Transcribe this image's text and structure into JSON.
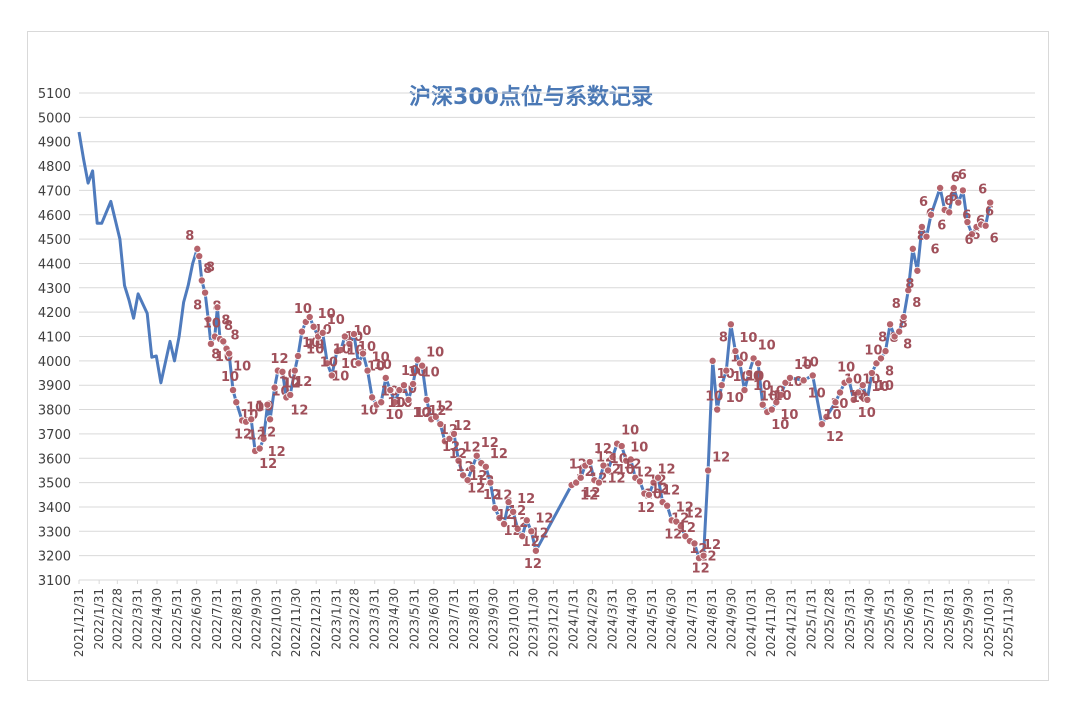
{
  "colors": {
    "line": "#4f7bbd",
    "marker": "#b5636b",
    "label": "#a0505a",
    "grid": "#d9d9d9",
    "title": "#4a78b5",
    "axis_text": "#404040"
  },
  "chart_data": {
    "type": "line",
    "title": "沪深300点位与系数记录",
    "xlabel": "",
    "ylabel": "",
    "ylim": [
      3100,
      5100
    ],
    "yticks": [
      3100,
      3200,
      3300,
      3400,
      3500,
      3600,
      3700,
      3800,
      3900,
      4000,
      4100,
      4200,
      4300,
      4400,
      4500,
      4600,
      4700,
      4800,
      4900,
      5000,
      5100
    ],
    "xlim": [
      "2021/12/31",
      "2026/1/10"
    ],
    "xticks": [
      "2021/12/31",
      "2022/1/31",
      "2022/2/28",
      "2022/3/31",
      "2022/4/30",
      "2022/5/31",
      "2022/6/30",
      "2022/7/31",
      "2022/8/31",
      "2022/9/30",
      "2022/10/31",
      "2022/11/30",
      "2022/12/31",
      "2023/1/31",
      "2023/2/28",
      "2023/3/31",
      "2023/4/30",
      "2023/5/31",
      "2023/6/30",
      "2023/7/31",
      "2023/8/31",
      "2023/9/30",
      "2023/10/31",
      "2023/11/30",
      "2023/12/31",
      "2024/1/31",
      "2024/2/29",
      "2024/3/31",
      "2024/4/30",
      "2024/5/31",
      "2024/6/30",
      "2024/7/31",
      "2024/8/31",
      "2024/9/30",
      "2024/10/31",
      "2024/11/30",
      "2024/12/31",
      "2025/1/31",
      "2025/2/28",
      "2025/3/31",
      "2025/4/30",
      "2025/5/31",
      "2025/6/30",
      "2025/7/31",
      "2025/8/31",
      "2025/9/30",
      "2025/10/31",
      "2025/11/30"
    ],
    "grid": true,
    "legend": "none",
    "series": [
      {
        "values": [
          [
            "2021/12/31",
            4940
          ],
          [
            "2022/1/7",
            4830
          ],
          [
            "2022/1/14",
            4730
          ],
          [
            "2022/1/21",
            4780
          ],
          [
            "2022/1/28",
            4565
          ],
          [
            "2022/2/4",
            4565
          ],
          [
            "2022/2/18",
            4655
          ],
          [
            "2022/3/4",
            4500
          ],
          [
            "2022/3/11",
            4310
          ],
          [
            "2022/3/18",
            4250
          ],
          [
            "2022/3/25",
            4175
          ],
          [
            "2022/4/1",
            4275
          ],
          [
            "2022/4/15",
            4195
          ],
          [
            "2022/4/22",
            4015
          ],
          [
            "2022/4/29",
            4020
          ],
          [
            "2022/5/6",
            3910
          ],
          [
            "2022/5/20",
            4080
          ],
          [
            "2022/5/27",
            4000
          ],
          [
            "2022/6/3",
            4100
          ],
          [
            "2022/6/10",
            4240
          ],
          [
            "2022/6/17",
            4310
          ],
          [
            "2022/6/24",
            4400
          ]
        ],
        "coef_points": [
          [
            "2022/7/1",
            4460,
            "8"
          ],
          [
            "2022/7/4",
            4430,
            "8"
          ],
          [
            "2022/7/8",
            4330,
            "8"
          ],
          [
            "2022/7/13",
            4280,
            "8"
          ],
          [
            "2022/7/18",
            4170,
            "8"
          ],
          [
            "2022/7/22",
            4070,
            "10"
          ],
          [
            "2022/7/28",
            4100,
            "10"
          ],
          [
            "2022/8/1",
            4220,
            "8"
          ],
          [
            "2022/8/5",
            4090,
            "8"
          ],
          [
            "2022/8/10",
            4080,
            "8"
          ],
          [
            "2022/8/15",
            4050,
            "8"
          ],
          [
            "2022/8/19",
            4030,
            "10"
          ],
          [
            "2022/8/25",
            3880,
            "10"
          ],
          [
            "2022/8/30",
            3830,
            "10"
          ],
          [
            "2022/9/8",
            3755,
            "10"
          ],
          [
            "2022/9/14",
            3750,
            "12"
          ],
          [
            "2022/9/22",
            3760,
            "10"
          ],
          [
            "2022/9/28",
            3630,
            "12"
          ],
          [
            "2022/10/5",
            3640,
            "12"
          ],
          [
            "2022/10/11",
            3680,
            "12"
          ],
          [
            "2022/10/17",
            3820,
            "10"
          ],
          [
            "2022/10/21",
            3760,
            "12"
          ],
          [
            "2022/10/28",
            3890,
            "10"
          ],
          [
            "2022/11/2",
            3960,
            "10"
          ],
          [
            "2022/11/9",
            3955,
            "12"
          ],
          [
            "2022/11/15",
            3850,
            "12"
          ],
          [
            "2022/11/21",
            3860,
            "12"
          ],
          [
            "2022/11/28",
            3960,
            "12"
          ],
          [
            "2022/12/3",
            4020,
            "10"
          ],
          [
            "2022/12/9",
            4120,
            "10"
          ],
          [
            "2022/12/15",
            4160,
            "10"
          ],
          [
            "2022/12/21",
            4180,
            "10"
          ],
          [
            "2022/12/27",
            4140,
            "10"
          ],
          [
            "2023/1/3",
            4100,
            "10"
          ],
          [
            "2023/1/10",
            4115,
            "10"
          ],
          [
            "2023/1/17",
            3990,
            "10"
          ],
          [
            "2023/1/24",
            3940,
            "10"
          ],
          [
            "2023/2/1",
            4040,
            "10"
          ],
          [
            "2023/2/7",
            4045,
            "10"
          ],
          [
            "2023/2/13",
            4100,
            "10"
          ],
          [
            "2023/2/20",
            4070,
            "10"
          ],
          [
            "2023/2/27",
            4110,
            "10"
          ],
          [
            "2023/3/6",
            3990,
            "10"
          ],
          [
            "2023/3/13",
            4030,
            "10"
          ],
          [
            "2023/3/20",
            3960,
            "10"
          ],
          [
            "2023/3/27",
            3850,
            "10"
          ],
          [
            "2023/4/3",
            3820,
            "10"
          ],
          [
            "2023/4/10",
            3830,
            "10"
          ],
          [
            "2023/4/17",
            3930,
            "10"
          ],
          [
            "2023/4/24",
            3880,
            "10"
          ],
          [
            "2023/5/1",
            3830,
            "10"
          ],
          [
            "2023/5/8",
            3880,
            "10"
          ],
          [
            "2023/5/15",
            3900,
            "10"
          ],
          [
            "2023/5/22",
            3840,
            "10"
          ],
          [
            "2023/5/29",
            3905,
            "10"
          ],
          [
            "2023/6/5",
            4005,
            "10"
          ],
          [
            "2023/6/12",
            3980,
            "10"
          ],
          [
            "2023/6/19",
            3840,
            "12"
          ],
          [
            "2023/6/26",
            3760,
            "12"
          ],
          [
            "2023/7/3",
            3770,
            "12"
          ],
          [
            "2023/7/10",
            3740,
            "12"
          ],
          [
            "2023/7/17",
            3670,
            "12"
          ],
          [
            "2023/7/24",
            3680,
            "12"
          ],
          [
            "2023/7/31",
            3700,
            "12"
          ],
          [
            "2023/8/7",
            3590,
            "12"
          ],
          [
            "2023/8/14",
            3530,
            "12"
          ],
          [
            "2023/8/21",
            3510,
            "12"
          ],
          [
            "2023/8/28",
            3560,
            "12"
          ],
          [
            "2023/9/4",
            3610,
            "12"
          ],
          [
            "2023/9/11",
            3580,
            "12"
          ],
          [
            "2023/9/18",
            3565,
            "12"
          ],
          [
            "2023/9/25",
            3500,
            "12"
          ],
          [
            "2023/10/2",
            3395,
            "12"
          ],
          [
            "2023/10/9",
            3355,
            "12"
          ],
          [
            "2023/10/16",
            3330,
            "12"
          ],
          [
            "2023/10/23",
            3420,
            "12"
          ],
          [
            "2023/10/30",
            3380,
            "12"
          ],
          [
            "2023/11/6",
            3310,
            "12"
          ],
          [
            "2023/11/13",
            3280,
            "12"
          ],
          [
            "2023/11/20",
            3345,
            "12"
          ],
          [
            "2023/11/27",
            3300,
            "12"
          ],
          [
            "2023/12/4",
            3220,
            "12"
          ],
          [
            "2024/1/28",
            3490,
            "12"
          ],
          [
            "2024/2/4",
            3500,
            "12"
          ],
          [
            "2024/2/11",
            3520,
            "12"
          ],
          [
            "2024/2/18",
            3570,
            "12"
          ],
          [
            "2024/2/25",
            3585,
            "12"
          ],
          [
            "2024/3/3",
            3510,
            "12"
          ],
          [
            "2024/3/10",
            3500,
            "12"
          ],
          [
            "2024/3/17",
            3570,
            "12"
          ],
          [
            "2024/3/24",
            3550,
            "12"
          ],
          [
            "2024/3/31",
            3605,
            "10"
          ],
          [
            "2024/4/7",
            3660,
            "10"
          ],
          [
            "2024/4/14",
            3650,
            "10"
          ],
          [
            "2024/4/21",
            3590,
            "10"
          ],
          [
            "2024/4/28",
            3595,
            "12"
          ],
          [
            "2024/5/5",
            3520,
            "12"
          ],
          [
            "2024/5/12",
            3505,
            "10"
          ],
          [
            "2024/5/19",
            3455,
            "12"
          ],
          [
            "2024/5/26",
            3450,
            "12"
          ],
          [
            "2024/6/2",
            3500,
            "12"
          ],
          [
            "2024/6/9",
            3520,
            "12"
          ],
          [
            "2024/6/16",
            3420,
            "12"
          ],
          [
            "2024/6/23",
            3405,
            "12"
          ],
          [
            "2024/6/30",
            3345,
            "12"
          ],
          [
            "2024/7/7",
            3340,
            "12"
          ],
          [
            "2024/7/14",
            3320,
            "12"
          ],
          [
            "2024/7/21",
            3280,
            "12"
          ],
          [
            "2024/7/28",
            3260,
            "12"
          ],
          [
            "2024/8/4",
            3250,
            "12"
          ],
          [
            "2024/8/11",
            3190,
            "12"
          ],
          [
            "2024/8/18",
            3200,
            "12"
          ],
          [
            "2024/8/25",
            3550,
            "12"
          ],
          [
            "2024/9/1",
            4000,
            "10"
          ],
          [
            "2024/9/8",
            3800,
            "10"
          ],
          [
            "2024/9/15",
            3900,
            "10"
          ],
          [
            "2024/9/22",
            3960,
            "10"
          ],
          [
            "2024/9/29",
            4150,
            "8"
          ],
          [
            "2024/10/6",
            4040,
            "10"
          ],
          [
            "2024/10/13",
            3990,
            "10"
          ],
          [
            "2024/10/20",
            3880,
            "10"
          ],
          [
            "2024/10/27",
            3950,
            "10"
          ],
          [
            "2024/11/3",
            4010,
            "10"
          ],
          [
            "2024/11/10",
            3990,
            "10"
          ],
          [
            "2024/11/17",
            3820,
            "10"
          ],
          [
            "2024/11/24",
            3790,
            "10"
          ],
          [
            "2024/12/1",
            3800,
            "10"
          ],
          [
            "2024/12/8",
            3830,
            "10"
          ],
          [
            "2024/12/15",
            3860,
            "10"
          ],
          [
            "2024/12/22",
            3910,
            "10"
          ],
          [
            "2024/12/29",
            3930,
            "10"
          ],
          [
            "2025/1/19",
            3920,
            "10"
          ],
          [
            "2025/2/2",
            3940,
            "10"
          ],
          [
            "2025/2/16",
            3740,
            "12"
          ],
          [
            "2025/2/23",
            3770,
            "10"
          ],
          [
            "2025/3/9",
            3830,
            "10"
          ],
          [
            "2025/3/16",
            3870,
            "10"
          ],
          [
            "2025/3/23",
            3910,
            "10"
          ],
          [
            "2025/3/30",
            3920,
            "10"
          ],
          [
            "2025/4/6",
            3840,
            "10"
          ],
          [
            "2025/4/13",
            3870,
            "10"
          ],
          [
            "2025/4/20",
            3900,
            "10"
          ],
          [
            "2025/4/27",
            3840,
            "10"
          ],
          [
            "2025/5/4",
            3950,
            "10"
          ],
          [
            "2025/5/11",
            3990,
            "10"
          ],
          [
            "2025/5/18",
            4010,
            "8"
          ],
          [
            "2025/5/25",
            4040,
            "8"
          ],
          [
            "2025/6/1",
            4150,
            "8"
          ],
          [
            "2025/6/8",
            4100,
            "8"
          ],
          [
            "2025/6/15",
            4120,
            "8"
          ],
          [
            "2025/6/22",
            4180,
            "8"
          ],
          [
            "2025/6/29",
            4290,
            "8"
          ],
          [
            "2025/7/6",
            4460,
            "8"
          ],
          [
            "2025/7/13",
            4370,
            "8"
          ],
          [
            "2025/7/20",
            4550,
            "6"
          ],
          [
            "2025/7/27",
            4510,
            "6"
          ],
          [
            "2025/8/3",
            4600,
            "6"
          ],
          [
            "2025/8/17",
            4710,
            "6"
          ],
          [
            "2025/8/24",
            4620,
            "6"
          ],
          [
            "2025/8/31",
            4610,
            "6"
          ],
          [
            "2025/9/7",
            4710,
            "6"
          ],
          [
            "2025/9/14",
            4650,
            "6"
          ],
          [
            "2025/9/21",
            4700,
            "6"
          ],
          [
            "2025/9/28",
            4570,
            "6"
          ],
          [
            "2025/10/5",
            4520,
            "6"
          ],
          [
            "2025/10/12",
            4550,
            "6"
          ],
          [
            "2025/10/19",
            4560,
            "6"
          ],
          [
            "2025/10/26",
            4555,
            "6"
          ],
          [
            "2025/11/2",
            4650,
            "6"
          ]
        ]
      }
    ]
  }
}
